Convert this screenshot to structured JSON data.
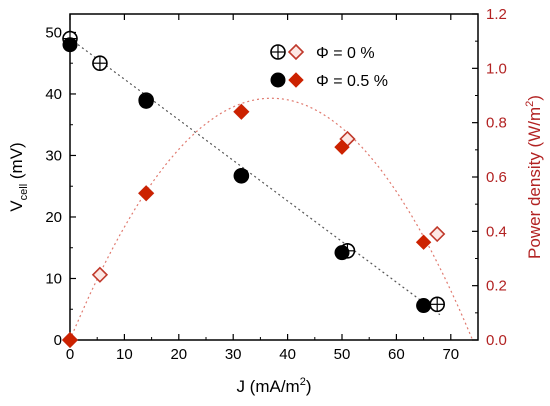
{
  "chart_data": {
    "type": "scatter",
    "title": "",
    "xlabel": {
      "main": "J (mA/m",
      "sup": "2",
      "tail": ")"
    },
    "ylabel_left": {
      "main": "V",
      "sub": "cell",
      "tail": " (mV)"
    },
    "ylabel_right": {
      "main": "Power density (W/m",
      "sup": "2",
      "tail": ")"
    },
    "xlim": [
      0,
      75
    ],
    "ylim_left": [
      0,
      53
    ],
    "ylim_right": [
      0,
      1.2
    ],
    "x_ticks": [
      0,
      10,
      20,
      30,
      40,
      50,
      60,
      70
    ],
    "y_left_ticks": [
      0,
      10,
      20,
      30,
      40,
      50
    ],
    "y_right_ticks": [
      "0.0",
      "0.2",
      "0.4",
      "0.6",
      "0.8",
      "1.0",
      "1.2"
    ],
    "grid": false,
    "legend_position": "top-right",
    "legend": [
      {
        "label": "Φ = 0 %",
        "markers": [
          "open-circle",
          "open-diamond"
        ]
      },
      {
        "label": "Φ = 0.5 %",
        "markers": [
          "filled-circle",
          "filled-diamond"
        ]
      }
    ],
    "series": [
      {
        "name": "Φ = 0 %",
        "axis": "left",
        "marker": "open-circle",
        "color": "#000000",
        "points": [
          [
            0,
            49
          ],
          [
            5.5,
            45
          ],
          [
            14,
            39
          ],
          [
            31.5,
            26.7
          ],
          [
            51,
            14.5
          ],
          [
            67.5,
            5.8
          ]
        ]
      },
      {
        "name": "Φ = 0.5 %",
        "axis": "left",
        "marker": "filled-circle",
        "color": "#000000",
        "points": [
          [
            0,
            48
          ],
          [
            14,
            38.8
          ],
          [
            31.5,
            26.7
          ],
          [
            50,
            14.2
          ],
          [
            65,
            5.6
          ]
        ]
      },
      {
        "name": "Φ = 0 %",
        "axis": "right",
        "marker": "open-diamond",
        "color": "#c0392b",
        "points": [
          [
            0,
            0.0
          ],
          [
            5.5,
            0.24
          ],
          [
            14,
            0.54
          ],
          [
            31.5,
            0.84
          ],
          [
            51,
            0.74
          ],
          [
            67.5,
            0.39
          ]
        ]
      },
      {
        "name": "Φ = 0.5 %",
        "axis": "right",
        "marker": "filled-diamond",
        "color": "#cc2200",
        "points": [
          [
            0,
            0.0
          ],
          [
            14,
            0.54
          ],
          [
            31.5,
            0.84
          ],
          [
            50,
            0.71
          ],
          [
            65,
            0.36
          ]
        ]
      }
    ],
    "fits": [
      {
        "axis": "left",
        "kind": "linear",
        "color": "#555555",
        "intercept": 49,
        "slope": -0.66,
        "x_range": [
          0,
          68
        ]
      },
      {
        "axis": "right",
        "kind": "quadratic",
        "color": "#e07a6f",
        "x0": 37,
        "peak": 0.89,
        "curvature": 0.00065,
        "x_range": [
          0,
          74
        ]
      }
    ]
  }
}
